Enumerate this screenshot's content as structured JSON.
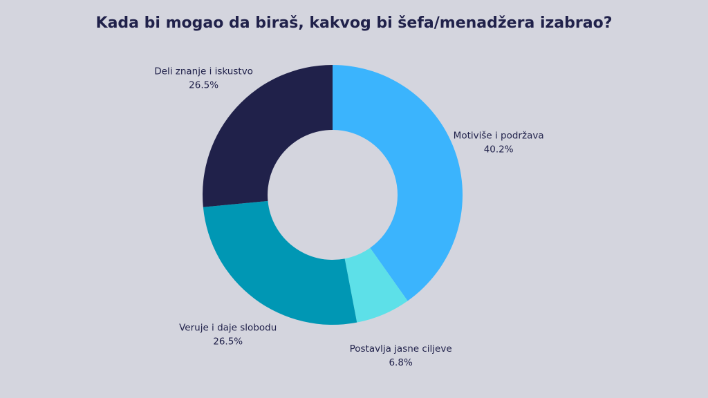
{
  "chart_data": {
    "type": "donut",
    "title": "Kada bi mogao da biraš, kakvog bi šefa/menadžera izabrao?",
    "categories": [
      "Motiviše i podržava",
      "Postavlja jasne ciljeve",
      "Veruje i daje slobodu",
      "Deli znanje i iskustvo"
    ],
    "values": [
      40.2,
      6.8,
      26.5,
      26.5
    ],
    "value_labels": [
      "40.2%",
      "6.8%",
      "26.5%",
      "26.5%"
    ],
    "colors": [
      "#3bb4fd",
      "#5de0e8",
      "#0097b4",
      "#20214a"
    ]
  }
}
